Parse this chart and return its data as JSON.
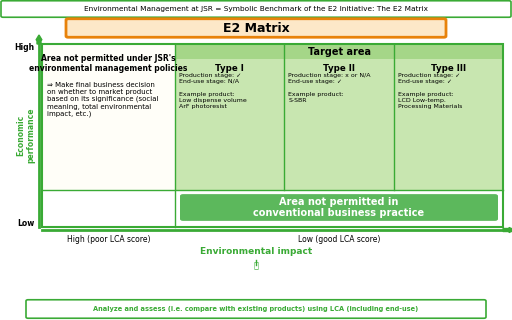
{
  "title": "Environmental Management at JSR = Symbolic Benchmark of the E2 Initiative: The E2 Matrix",
  "e2_matrix_label": "E2 Matrix",
  "green": "#3aaa35",
  "dark_green": "#3aaa35",
  "light_green": "#c8e6b0",
  "target_header_green": "#a5d688",
  "orange_border": "#e8820a",
  "peach_bg": "#fde8c8",
  "white": "#FFFFFF",
  "black": "#000000",
  "conv_green": "#5cb85c",
  "fig_bg": "#FFFFFF"
}
